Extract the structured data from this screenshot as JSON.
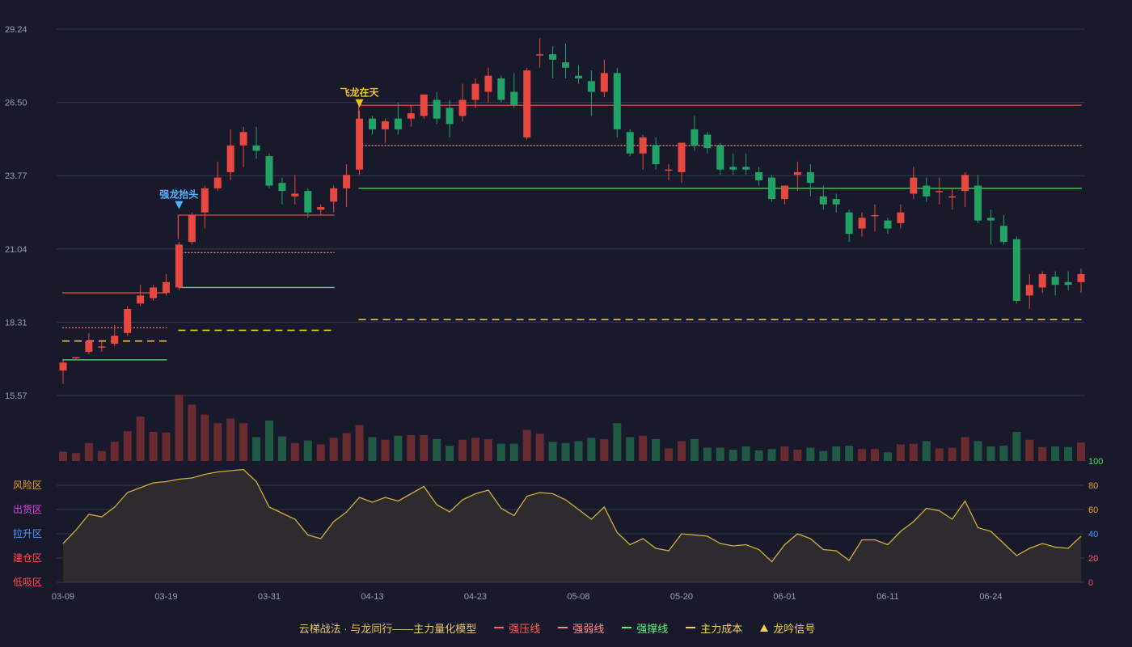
{
  "colors": {
    "background": "#181a2c",
    "up": "#e8483f",
    "down": "#21a366",
    "up_volume": "#6a2a32",
    "down_volume": "#1f5a45",
    "grid": "#34374a",
    "pressure": "#e8483f",
    "weak": "#f08080",
    "support": "#4cd964",
    "cost": "#f0c419",
    "oscillator": "#d4af37",
    "signal_dragon": "#4fb4ff",
    "signal_fly": "#f0c419"
  },
  "legend": {
    "title": "云梯战法 · 与龙同行——主力量化模型",
    "items": [
      {
        "label": "强压线",
        "color": "#ff5a5a",
        "style": "solid"
      },
      {
        "label": "强弱线",
        "color": "#ff8a8a",
        "style": "dash"
      },
      {
        "label": "强撑线",
        "color": "#5cf27a",
        "style": "solid"
      },
      {
        "label": "主力成本",
        "color": "#f5d04a",
        "style": "dash"
      },
      {
        "label": "龙吟信号",
        "color": "#f5d04a",
        "style": "tri"
      }
    ]
  },
  "chart_data": [
    {
      "type": "candlestick",
      "y_ticks": [
        "29.24",
        "26.50",
        "23.77",
        "21.04",
        "18.31",
        "15.57"
      ],
      "ylim": [
        15.57,
        29.24
      ],
      "grid": true,
      "x_ticks": [
        "03-09",
        "03-19",
        "03-31",
        "04-13",
        "04-23",
        "05-08",
        "05-20",
        "06-01",
        "06-11",
        "06-24"
      ],
      "x_tick_indices": [
        0,
        8,
        16,
        24,
        32,
        40,
        48,
        56,
        64,
        72
      ],
      "candles": [
        [
          16.5,
          16.8,
          16.9,
          16.0
        ],
        [
          17.0,
          17.0,
          17.0,
          16.9
        ],
        [
          17.2,
          17.6,
          17.9,
          17.1
        ],
        [
          17.4,
          17.4,
          17.6,
          17.2
        ],
        [
          17.5,
          17.8,
          18.2,
          17.4
        ],
        [
          17.9,
          18.8,
          18.9,
          17.8
        ],
        [
          19.0,
          19.3,
          19.7,
          18.9
        ],
        [
          19.2,
          19.6,
          19.7,
          19.1
        ],
        [
          19.4,
          19.8,
          20.1,
          19.3
        ],
        [
          19.6,
          21.2,
          21.3,
          19.5
        ],
        [
          21.3,
          22.3,
          22.4,
          21.2
        ],
        [
          22.4,
          23.3,
          23.4,
          21.8
        ],
        [
          23.3,
          23.7,
          24.3,
          23.2
        ],
        [
          23.9,
          24.9,
          25.5,
          23.6
        ],
        [
          24.9,
          25.4,
          25.6,
          24.1
        ],
        [
          24.9,
          24.7,
          25.6,
          24.4
        ],
        [
          24.5,
          23.4,
          24.6,
          23.3
        ],
        [
          23.5,
          23.2,
          23.7,
          22.7
        ],
        [
          23.0,
          23.1,
          23.8,
          22.7
        ],
        [
          23.2,
          22.4,
          23.3,
          22.2
        ],
        [
          22.5,
          22.6,
          22.7,
          22.3
        ],
        [
          22.8,
          23.3,
          23.4,
          22.4
        ],
        [
          23.3,
          23.8,
          24.2,
          22.6
        ],
        [
          24.0,
          25.9,
          26.2,
          23.8
        ],
        [
          25.9,
          25.5,
          26.0,
          25.3
        ],
        [
          25.5,
          25.8,
          25.9,
          25.0
        ],
        [
          25.9,
          25.5,
          26.5,
          25.3
        ],
        [
          25.9,
          26.1,
          26.4,
          25.6
        ],
        [
          26.0,
          26.8,
          26.8,
          25.9
        ],
        [
          26.6,
          25.9,
          26.9,
          25.7
        ],
        [
          26.3,
          25.7,
          26.6,
          25.2
        ],
        [
          26.0,
          26.6,
          27.2,
          25.8
        ],
        [
          26.6,
          27.2,
          27.4,
          26.3
        ],
        [
          26.9,
          27.5,
          27.8,
          26.5
        ],
        [
          27.4,
          26.6,
          27.5,
          26.5
        ],
        [
          26.9,
          26.4,
          27.6,
          26.3
        ],
        [
          25.2,
          27.7,
          27.8,
          25.1
        ],
        [
          28.3,
          28.3,
          28.9,
          27.8
        ],
        [
          28.3,
          28.1,
          28.6,
          27.4
        ],
        [
          28.0,
          27.8,
          28.7,
          27.4
        ],
        [
          27.5,
          27.4,
          27.9,
          27.2
        ],
        [
          27.3,
          26.9,
          27.7,
          26.0
        ],
        [
          26.9,
          27.6,
          28.1,
          26.7
        ],
        [
          27.6,
          25.5,
          27.8,
          25.2
        ],
        [
          25.4,
          24.6,
          25.5,
          24.5
        ],
        [
          24.6,
          25.2,
          25.3,
          24.0
        ],
        [
          24.9,
          24.2,
          25.2,
          24.0
        ],
        [
          24.0,
          24.0,
          24.2,
          23.6
        ],
        [
          23.9,
          25.0,
          25.0,
          23.5
        ],
        [
          25.5,
          24.9,
          26.0,
          24.7
        ],
        [
          25.3,
          24.8,
          25.4,
          24.6
        ],
        [
          24.9,
          24.0,
          25.0,
          23.8
        ],
        [
          24.1,
          24.0,
          24.6,
          23.8
        ],
        [
          24.1,
          24.0,
          24.6,
          23.8
        ],
        [
          23.9,
          23.6,
          24.1,
          23.4
        ],
        [
          23.7,
          22.9,
          23.8,
          22.8
        ],
        [
          22.9,
          23.4,
          23.4,
          22.7
        ],
        [
          23.8,
          23.9,
          24.3,
          23.2
        ],
        [
          23.9,
          23.5,
          24.2,
          23.0
        ],
        [
          23.0,
          22.7,
          23.4,
          22.5
        ],
        [
          22.9,
          22.7,
          23.1,
          22.4
        ],
        [
          22.4,
          21.6,
          22.5,
          21.3
        ],
        [
          21.8,
          22.2,
          22.4,
          21.5
        ],
        [
          22.3,
          22.3,
          22.7,
          21.7
        ],
        [
          22.1,
          21.8,
          22.2,
          21.6
        ],
        [
          22.0,
          22.4,
          22.7,
          21.8
        ],
        [
          23.1,
          23.7,
          24.1,
          22.9
        ],
        [
          23.4,
          23.0,
          23.7,
          22.8
        ],
        [
          23.2,
          23.2,
          23.7,
          22.7
        ],
        [
          23.0,
          23.0,
          23.3,
          22.5
        ],
        [
          23.2,
          23.8,
          23.9,
          22.6
        ],
        [
          23.4,
          22.1,
          23.8,
          22.0
        ],
        [
          22.2,
          22.1,
          22.5,
          21.2
        ],
        [
          21.9,
          21.3,
          22.3,
          21.2
        ],
        [
          21.4,
          19.1,
          21.5,
          19.0
        ],
        [
          19.3,
          19.7,
          20.1,
          18.8
        ],
        [
          19.6,
          20.1,
          20.2,
          19.4
        ],
        [
          20.0,
          19.7,
          20.2,
          19.3
        ],
        [
          19.8,
          19.7,
          20.2,
          19.5
        ],
        [
          19.8,
          20.1,
          20.3,
          19.4
        ]
      ],
      "volume": [
        0.14,
        0.12,
        0.27,
        0.15,
        0.29,
        0.45,
        0.67,
        0.44,
        0.43,
        1.0,
        0.85,
        0.7,
        0.57,
        0.64,
        0.57,
        0.36,
        0.61,
        0.37,
        0.27,
        0.31,
        0.25,
        0.35,
        0.42,
        0.54,
        0.36,
        0.32,
        0.38,
        0.39,
        0.39,
        0.33,
        0.23,
        0.32,
        0.35,
        0.33,
        0.26,
        0.26,
        0.47,
        0.41,
        0.29,
        0.27,
        0.3,
        0.35,
        0.33,
        0.57,
        0.36,
        0.38,
        0.33,
        0.19,
        0.3,
        0.33,
        0.2,
        0.2,
        0.17,
        0.22,
        0.16,
        0.18,
        0.22,
        0.17,
        0.2,
        0.15,
        0.22,
        0.23,
        0.18,
        0.18,
        0.13,
        0.25,
        0.26,
        0.3,
        0.19,
        0.2,
        0.36,
        0.3,
        0.22,
        0.23,
        0.44,
        0.32,
        0.21,
        0.22,
        0.21,
        0.28
      ],
      "lines": [
        {
          "kind": "pressure",
          "style": "solid",
          "from": 0,
          "to": 8,
          "value": 19.4
        },
        {
          "kind": "weak",
          "style": "dot",
          "from": 0,
          "to": 8,
          "value": 18.1
        },
        {
          "kind": "cost",
          "style": "dash",
          "from": 0,
          "to": 8,
          "value": 17.6
        },
        {
          "kind": "support",
          "style": "solid",
          "from": 0,
          "to": 8,
          "value": 16.9
        },
        {
          "kind": "pressure",
          "style": "solid",
          "from": 9,
          "to": 21,
          "value": 22.3,
          "riser_from": 21.4
        },
        {
          "kind": "weak",
          "style": "dot",
          "from": 9,
          "to": 21,
          "value": 20.9
        },
        {
          "kind": "support",
          "style": "solid",
          "from": 9,
          "to": 21,
          "value": 19.6
        },
        {
          "kind": "cost",
          "style": "dash",
          "from": 9,
          "to": 21,
          "value": 18.0
        },
        {
          "kind": "pressure",
          "style": "solid",
          "from": 23,
          "to": 79,
          "value": 26.4,
          "riser_from": 25.9
        },
        {
          "kind": "weak",
          "style": "dot",
          "from": 23,
          "to": 79,
          "value": 24.9
        },
        {
          "kind": "support",
          "style": "solid",
          "from": 23,
          "to": 79,
          "value": 23.3
        },
        {
          "kind": "cost",
          "style": "dash",
          "from": 23,
          "to": 79,
          "value": 18.4
        }
      ],
      "signals": [
        {
          "index": 9,
          "label": "强龙抬头",
          "color": "signal_dragon",
          "above": 22.4
        },
        {
          "index": 23,
          "label": "飞龙在天",
          "color": "signal_fly",
          "above": 26.2
        }
      ]
    },
    {
      "type": "area",
      "ylim": [
        0,
        100
      ],
      "y_ticks": [
        "100",
        "80",
        "60",
        "40",
        "20",
        "0"
      ],
      "zone_labels": [
        {
          "label": "风险区",
          "color": "#f0a030"
        },
        {
          "label": "出货区",
          "color": "#e040e0"
        },
        {
          "label": "拉升区",
          "color": "#4f9cff"
        },
        {
          "label": "建仓区",
          "color": "#ff4a4a"
        },
        {
          "label": "低吸区",
          "color": "#ff4a4a"
        }
      ],
      "values": [
        32,
        43,
        56,
        54,
        62,
        74,
        78,
        82,
        83,
        85,
        86,
        89,
        91,
        92,
        93,
        83,
        62,
        57,
        52,
        39,
        36,
        50,
        58,
        70,
        66,
        70,
        67,
        73,
        79,
        64,
        58,
        68,
        73,
        76,
        61,
        55,
        71,
        74,
        73,
        68,
        60,
        52,
        62,
        41,
        31,
        36,
        28,
        26,
        40,
        39,
        38,
        32,
        30,
        31,
        27,
        17,
        31,
        40,
        36,
        27,
        26,
        18,
        35,
        35,
        31,
        42,
        50,
        61,
        59,
        52,
        67,
        45,
        42,
        32,
        22,
        28,
        32,
        29,
        28,
        38
      ]
    }
  ]
}
